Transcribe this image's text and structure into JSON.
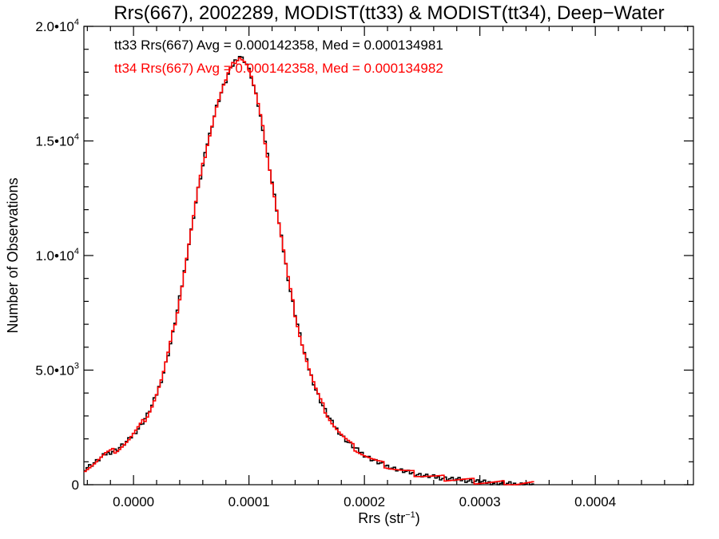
{
  "chart_data": {
    "type": "histogram",
    "title": "Rrs(667), 2002289, MODIST(tt33) & MODIST(tt34), Deep−Water",
    "xlabel": "Rrs (str",
    "xlabel_sup": "−1",
    "xlabel_end": ")",
    "ylabel": "Number of Observations",
    "xlim": [
      -4.3e-05,
      0.000485
    ],
    "ylim": [
      0,
      20000
    ],
    "x_ticks": [
      {
        "value": 0.0,
        "label": "0.0000"
      },
      {
        "value": 0.0001,
        "label": "0.0001"
      },
      {
        "value": 0.0002,
        "label": "0.0002"
      },
      {
        "value": 0.0003,
        "label": "0.0003"
      },
      {
        "value": 0.0004,
        "label": "0.0004"
      }
    ],
    "y_ticks": [
      {
        "value": 0,
        "mant": "0",
        "exp": ""
      },
      {
        "value": 5000,
        "mant": "5.0•10",
        "exp": "3"
      },
      {
        "value": 10000,
        "mant": "1.0•10",
        "exp": "4"
      },
      {
        "value": 15000,
        "mant": "1.5•10",
        "exp": "4"
      },
      {
        "value": 20000,
        "mant": "2.0•10",
        "exp": "4"
      }
    ],
    "grid": false,
    "bin_width": 2e-06,
    "bin_start": -4.3e-05,
    "series": [
      {
        "name": "tt33",
        "color": "#000000",
        "stat_text": "tt33 Rrs(667) Avg = 0.000142358, Med = 0.000134981"
      },
      {
        "name": "tt34",
        "color": "#ff0000",
        "stat_text": "tt34 Rrs(667) Avg = 0.000142358, Med = 0.000134982"
      }
    ],
    "counts": [
      700,
      760,
      820,
      880,
      950,
      1020,
      1100,
      1180,
      1260,
      1340,
      1380,
      1420,
      1460,
      1500,
      1550,
      1620,
      1700,
      1780,
      1870,
      1960,
      2080,
      2200,
      2320,
      2450,
      2580,
      2720,
      2880,
      3050,
      3250,
      3450,
      3700,
      3950,
      4250,
      4550,
      4900,
      5300,
      5700,
      6150,
      6600,
      7100,
      7600,
      8150,
      8700,
      9300,
      9900,
      10500,
      11100,
      11700,
      12300,
      12900,
      13400,
      13900,
      14400,
      14900,
      15300,
      15700,
      16100,
      16500,
      16800,
      17100,
      17400,
      17600,
      17900,
      18100,
      18300,
      18500,
      18600,
      18700,
      18600,
      18500,
      18350,
      18100,
      17800,
      17400,
      17000,
      16550,
      16050,
      15550,
      15000,
      14400,
      13800,
      13200,
      12600,
      12000,
      11400,
      10800,
      10200,
      9600,
      9000,
      8450,
      7950,
      7450,
      7000,
      6550,
      6150,
      5750,
      5400,
      5050,
      4750,
      4450,
      4150,
      3900,
      3650,
      3450,
      3250,
      3050,
      2880,
      2720,
      2570,
      2430,
      2300,
      2180,
      2060,
      1950,
      1850,
      1760,
      1670,
      1590,
      1510,
      1440,
      1370,
      1300,
      1240,
      1180,
      1120,
      1070,
      1020,
      970,
      930,
      890,
      850,
      810,
      775,
      740,
      705,
      675,
      645,
      615,
      590,
      565,
      540,
      515,
      495,
      475,
      455,
      435,
      415,
      400,
      385,
      370,
      355,
      340,
      325,
      310,
      300,
      290,
      280,
      270,
      260,
      250,
      240,
      230,
      220,
      210,
      200,
      190,
      180,
      170,
      160,
      150,
      140,
      130,
      120,
      110,
      100,
      92,
      84,
      76,
      68,
      62,
      56,
      50,
      45,
      40,
      36,
      32,
      28,
      25,
      22,
      20,
      18,
      16,
      14,
      12,
      10
    ]
  }
}
